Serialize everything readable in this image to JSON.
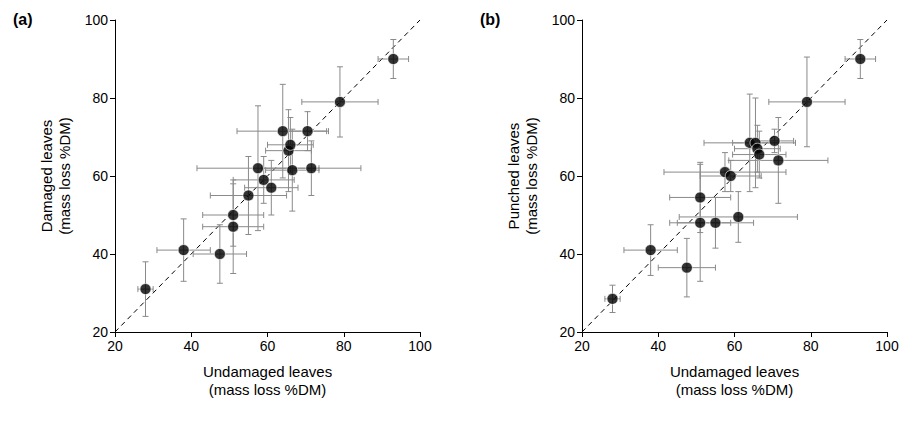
{
  "chart_data": [
    {
      "type": "scatter",
      "title": "(a)",
      "x_label": "Undamaged leaves\n(mass loss %DM)",
      "y_label": "Damaged leaves\n(mass loss %DM)",
      "xlim": [
        20,
        100
      ],
      "ylim": [
        20,
        100
      ],
      "xticks": [
        20,
        40,
        60,
        80,
        100
      ],
      "yticks": [
        20,
        40,
        60,
        80,
        100
      ],
      "color": "#000000",
      "marker": "circle",
      "x": [
        28,
        38,
        47.5,
        51,
        51,
        55,
        57.5,
        59,
        61,
        64,
        65.5,
        66,
        66.5,
        70.5,
        71.5,
        79,
        93
      ],
      "y": [
        31,
        41,
        40,
        47,
        50,
        55,
        62,
        59,
        57,
        71.5,
        66.5,
        68,
        61.5,
        71.5,
        62,
        79,
        90
      ],
      "xerr": [
        2,
        7,
        7,
        8,
        8,
        10,
        16,
        8,
        7,
        12,
        6,
        6,
        7,
        5,
        13,
        10,
        4
      ],
      "yerr": [
        7,
        8,
        7.5,
        12,
        8,
        10,
        16,
        6,
        7,
        12,
        10.5,
        7,
        10.5,
        5,
        7,
        9,
        5
      ],
      "reference_line": {
        "x": [
          20,
          100
        ],
        "y": [
          20,
          100
        ],
        "line_style": "dashed"
      }
    },
    {
      "type": "scatter",
      "title": "(b)",
      "x_label": "Undamaged leaves\n(mass loss %DM)",
      "y_label": "Punched leaves\n(mass loss %DM)",
      "xlim": [
        20,
        100
      ],
      "ylim": [
        20,
        100
      ],
      "xticks": [
        20,
        40,
        60,
        80,
        100
      ],
      "yticks": [
        20,
        40,
        60,
        80,
        100
      ],
      "color": "#000000",
      "marker": "circle",
      "x": [
        28,
        38,
        47.5,
        51,
        51,
        55,
        57.5,
        59,
        61,
        64,
        65.5,
        66,
        66.5,
        70.5,
        71.5,
        79,
        93
      ],
      "y": [
        28.5,
        41,
        36.5,
        54.5,
        48,
        48,
        61,
        60,
        49.5,
        68.5,
        68.5,
        67,
        65.5,
        69,
        64,
        79,
        90
      ],
      "xerr": [
        2,
        7,
        7.5,
        8,
        8,
        10,
        16,
        8,
        15.5,
        12,
        6,
        6,
        7,
        5,
        13,
        10,
        4
      ],
      "yerr": [
        3.5,
        6.5,
        7.5,
        9,
        15,
        6.5,
        5,
        4,
        6.5,
        12.5,
        11.5,
        6,
        6,
        3,
        11,
        11.5,
        5
      ],
      "reference_line": {
        "x": [
          20,
          100
        ],
        "y": [
          20,
          100
        ],
        "line_style": "dashed"
      }
    }
  ]
}
